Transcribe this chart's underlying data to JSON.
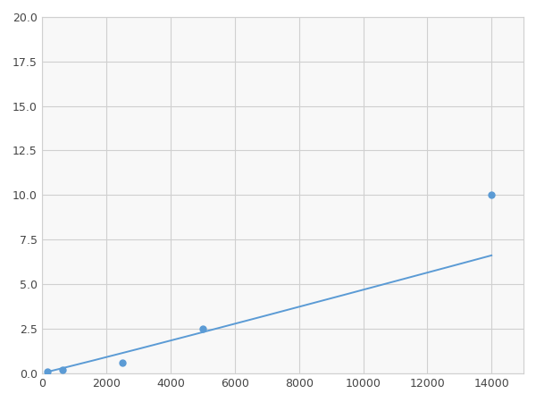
{
  "x": [
    156,
    625,
    2500,
    5000,
    14000
  ],
  "y": [
    0.1,
    0.2,
    0.6,
    2.5,
    10.0
  ],
  "line_color": "#5b9bd5",
  "marker_color": "#5b9bd5",
  "marker_size": 5,
  "linewidth": 1.4,
  "xlim": [
    0,
    15000
  ],
  "ylim": [
    0,
    20
  ],
  "xticks": [
    0,
    2000,
    4000,
    6000,
    8000,
    10000,
    12000,
    14000
  ],
  "yticks": [
    0.0,
    2.5,
    5.0,
    7.5,
    10.0,
    12.5,
    15.0,
    17.5,
    20.0
  ],
  "grid_color": "#d0d0d0",
  "background_color": "#f8f8f8",
  "figure_background": "#ffffff"
}
